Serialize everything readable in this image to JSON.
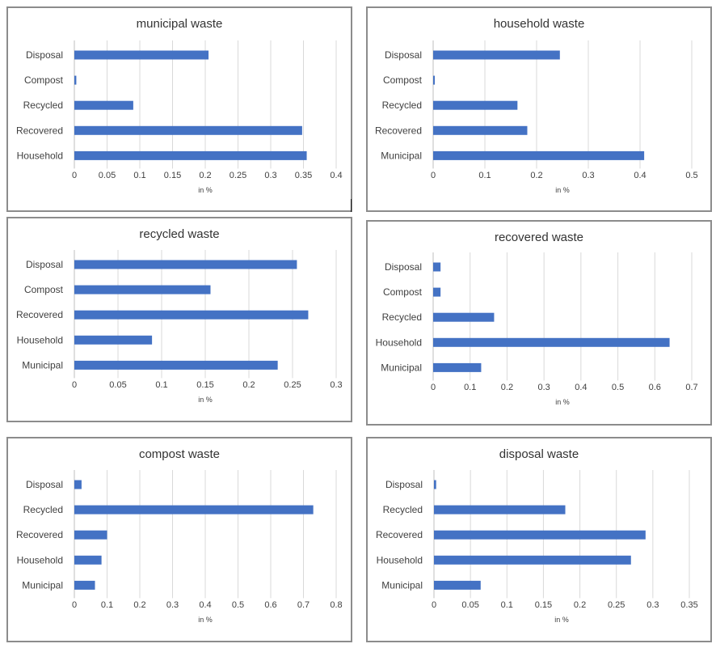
{
  "colors": {
    "bar": "#4472c4",
    "grid": "#d9d9d9",
    "border": "#8c8c8c"
  },
  "chart_data": [
    {
      "type": "bar",
      "orientation": "horizontal",
      "title": "municipal waste",
      "categories": [
        "Disposal",
        "Compost",
        "Recycled",
        "Recovered",
        "Household"
      ],
      "values": [
        0.205,
        0.003,
        0.09,
        0.348,
        0.355
      ],
      "xlabel": "in %",
      "xlim": [
        0,
        0.4
      ],
      "ticks": [
        "0",
        "0.05",
        "0.1",
        "0.15",
        "0.2",
        "0.25",
        "0.3",
        "0.35",
        "0.4"
      ],
      "grid": true
    },
    {
      "type": "bar",
      "orientation": "horizontal",
      "title": "household waste",
      "categories": [
        "Disposal",
        "Compost",
        "Recycled",
        "Recovered",
        "Municipal"
      ],
      "values": [
        0.245,
        0.003,
        0.163,
        0.182,
        0.408
      ],
      "xlabel": "in %",
      "xlim": [
        0,
        0.5
      ],
      "ticks": [
        "0",
        "0.1",
        "0.2",
        "0.3",
        "0.4",
        "0.5"
      ],
      "grid": true
    },
    {
      "type": "bar",
      "orientation": "horizontal",
      "title": "recycled waste",
      "categories": [
        "Disposal",
        "Compost",
        "Recovered",
        "Household",
        "Municipal"
      ],
      "values": [
        0.255,
        0.156,
        0.268,
        0.089,
        0.233
      ],
      "xlabel": "in %",
      "xlim": [
        0,
        0.3
      ],
      "ticks": [
        "0",
        "0.05",
        "0.1",
        "0.15",
        "0.2",
        "0.25",
        "0.3"
      ],
      "grid": true
    },
    {
      "type": "bar",
      "orientation": "horizontal",
      "title": "recovered waste",
      "categories": [
        "Disposal",
        "Compost",
        "Recycled",
        "Household",
        "Municipal"
      ],
      "values": [
        0.02,
        0.02,
        0.165,
        0.64,
        0.13
      ],
      "xlabel": "in %",
      "xlim": [
        0,
        0.7
      ],
      "ticks": [
        "0",
        "0.1",
        "0.2",
        "0.3",
        "0.4",
        "0.5",
        "0.6",
        "0.7"
      ],
      "grid": true
    },
    {
      "type": "bar",
      "orientation": "horizontal",
      "title": "compost waste",
      "categories": [
        "Disposal",
        "Recycled",
        "Recovered",
        "Household",
        "Municipal"
      ],
      "values": [
        0.022,
        0.73,
        0.1,
        0.083,
        0.063
      ],
      "xlabel": "in %",
      "xlim": [
        0,
        0.8
      ],
      "ticks": [
        "0",
        "0.1",
        "0.2",
        "0.3",
        "0.4",
        "0.5",
        "0.6",
        "0.7",
        "0.8"
      ],
      "grid": true
    },
    {
      "type": "bar",
      "orientation": "horizontal",
      "title": "disposal waste",
      "categories": [
        "Disposal",
        "Recycled",
        "Recovered",
        "Household",
        "Municipal"
      ],
      "values": [
        0.003,
        0.18,
        0.29,
        0.27,
        0.064
      ],
      "xlabel": "in %",
      "xlim": [
        0,
        0.35
      ],
      "ticks": [
        "0",
        "0.05",
        "0.1",
        "0.15",
        "0.2",
        "0.25",
        "0.3",
        "0.35"
      ],
      "grid": true
    }
  ]
}
